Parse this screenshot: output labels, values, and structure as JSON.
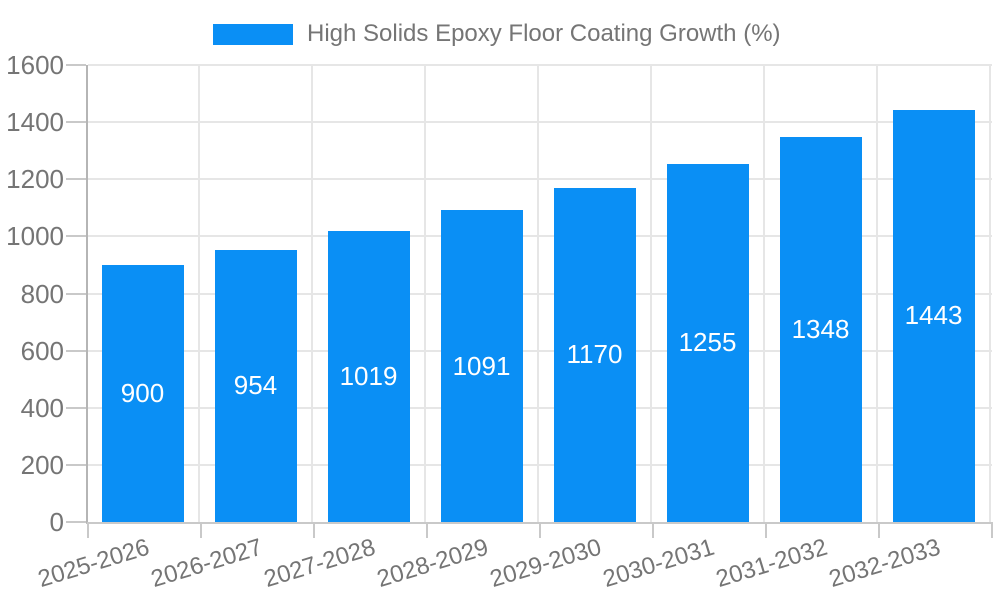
{
  "chart_data": {
    "type": "bar",
    "title": "High Solids Epoxy Floor Coating Growth (%)",
    "categories": [
      "2025-2026",
      "2026-2027",
      "2027-2028",
      "2028-2029",
      "2029-2030",
      "2030-2031",
      "2031-2032",
      "2032-2033"
    ],
    "values": [
      900,
      954,
      1019,
      1091,
      1170,
      1255,
      1348,
      1443
    ],
    "xlabel": "",
    "ylabel": "",
    "ylim": [
      0,
      1600
    ],
    "ytick_step": 200,
    "yticks": [
      0,
      200,
      400,
      600,
      800,
      1000,
      1200,
      1400,
      1600
    ],
    "grid": true,
    "bar_labels_visible": true,
    "legend_position": "top",
    "x_label_rotation_deg": -17,
    "colors": {
      "bar": "#0a8ff5",
      "bar_label": "#ffffff",
      "axis_text": "#757575",
      "grid_line": "#e6e6e6",
      "axis_line": "#b5b5b5",
      "tick_line": "#c9c9c9",
      "background": "#ffffff"
    }
  }
}
